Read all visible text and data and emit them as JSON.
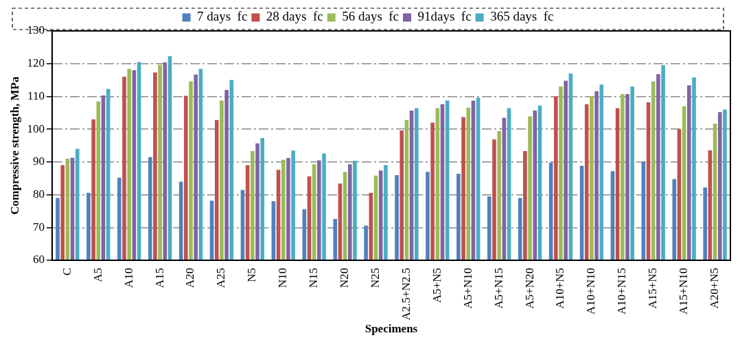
{
  "chart_data": {
    "type": "bar",
    "xlabel": "Specimens",
    "ylabel": "Compressive strength, MPa",
    "categories": [
      "C",
      "A5",
      "A10",
      "A15",
      "A20",
      "A25",
      "N5",
      "N10",
      "N15",
      "N20",
      "N25",
      "A2.5+N2.5",
      "A5+N5",
      "A5+N10",
      "A5+N15",
      "A5+N20",
      "A10+N5",
      "A10+N10",
      "A10+N15",
      "A15+N5",
      "A15+N10",
      "A20+N5"
    ],
    "series": [
      {
        "name": "7 days  fc",
        "color": "#4f81bd",
        "values": [
          79,
          80.6,
          85.2,
          91.5,
          84,
          78.2,
          81.5,
          78,
          75.6,
          72.6,
          70.6,
          86,
          87,
          86.4,
          79.5,
          79,
          89.8,
          88.8,
          87.2,
          90,
          84.8,
          82.2
        ]
      },
      {
        "name": "28 days  fc",
        "color": "#c0504d",
        "values": [
          89,
          103,
          116,
          117.3,
          110.2,
          102.8,
          89,
          87.6,
          85.6,
          83.4,
          80.6,
          99.6,
          102,
          103.7,
          96.9,
          93.3,
          110,
          107.6,
          106.4,
          108.2,
          100,
          93.6
        ]
      },
      {
        "name": "56 days  fc",
        "color": "#9bbb59",
        "values": [
          91,
          108.5,
          118.4,
          119.6,
          114.6,
          108.8,
          93.3,
          90.7,
          89.3,
          87,
          85.8,
          102.8,
          106.4,
          106.6,
          99.4,
          103.9,
          113,
          110.1,
          110.7,
          114.6,
          107,
          101.7
        ]
      },
      {
        "name": "91days  fc",
        "color": "#8064a2",
        "values": [
          91.3,
          110.3,
          118,
          120.4,
          116.7,
          112,
          95.7,
          91.2,
          90.5,
          89.3,
          87.4,
          105.7,
          107.6,
          108.7,
          103.5,
          105.7,
          114.8,
          111.6,
          110.7,
          116.8,
          113.4,
          105.2
        ]
      },
      {
        "name": "365 days  fc",
        "color": "#4bacc6",
        "values": [
          94,
          112.3,
          120.5,
          122.3,
          118.4,
          115,
          97.3,
          93.5,
          92.6,
          90.4,
          89,
          106.4,
          108.8,
          109.6,
          106.4,
          107.2,
          117,
          113.6,
          113,
          119.5,
          115.8,
          106
        ]
      }
    ],
    "ylim": [
      60,
      130
    ],
    "yticks": [
      60,
      70,
      80,
      90,
      100,
      110,
      120,
      130
    ],
    "grid": "y",
    "legend": "top"
  }
}
